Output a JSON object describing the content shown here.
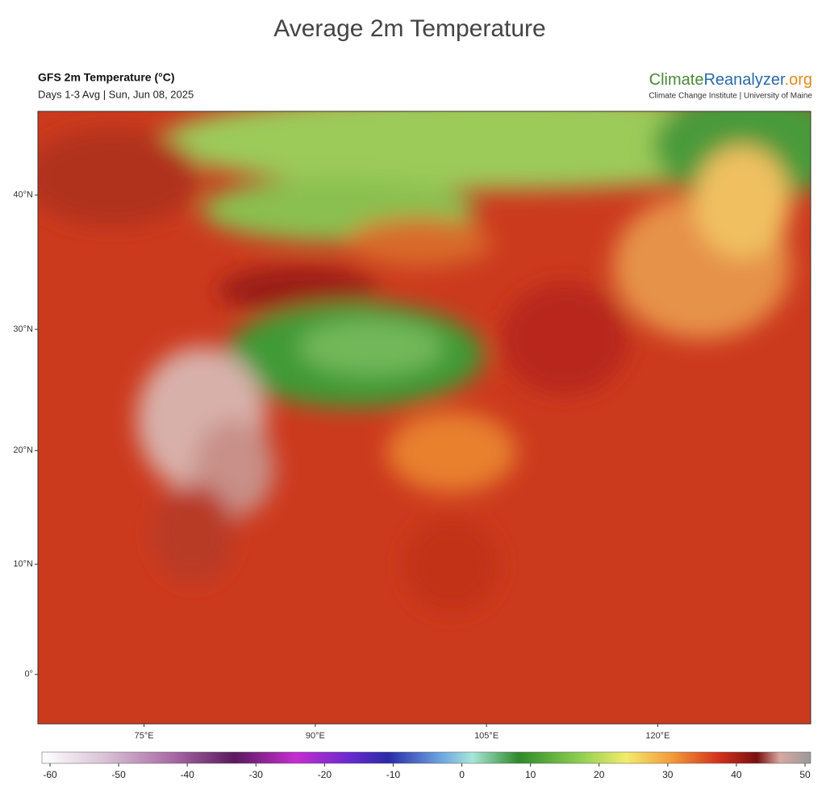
{
  "title": "Average 2m Temperature",
  "header": {
    "product": "GFS 2m Temperature (°C)",
    "period": "Days 1-3 Avg | Sun, Jun 08, 2025",
    "logo_part1": "Climate",
    "logo_part2": "Reanalyzer",
    "logo_part3": ".org",
    "logo_sub": "Climate Change Institute | University of Maine"
  },
  "map": {
    "xlim": [
      65.7,
      133.4
    ],
    "ylim": [
      -4.5,
      45.6
    ],
    "xticks": [
      {
        "value": 75,
        "label": "75°E"
      },
      {
        "value": 90,
        "label": "90°E"
      },
      {
        "value": 105,
        "label": "105°E"
      },
      {
        "value": 120,
        "label": "120°E"
      }
    ],
    "yticks": [
      {
        "value": 40,
        "label": "40°N"
      },
      {
        "value": 30,
        "label": "30°N"
      },
      {
        "value": 20,
        "label": "20°N"
      },
      {
        "value": 10,
        "label": "10°N"
      },
      {
        "value": 0,
        "label": "0°"
      }
    ]
  },
  "colorbar": {
    "lim": [
      -60,
      50
    ],
    "ticks": [
      -60,
      -50,
      -40,
      -30,
      -20,
      -10,
      0,
      10,
      20,
      30,
      40,
      50
    ]
  }
}
